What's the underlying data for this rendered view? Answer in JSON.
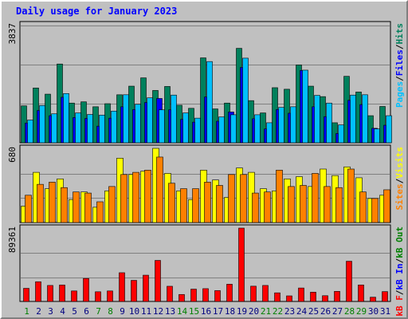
{
  "chart_data": {
    "type": "bar",
    "title": "Daily usage for January 2023",
    "x": [
      "1",
      "2",
      "3",
      "4",
      "5",
      "6",
      "7",
      "8",
      "9",
      "10",
      "11",
      "12",
      "13",
      "14",
      "15",
      "16",
      "17",
      "18",
      "19",
      "20",
      "21",
      "22",
      "23",
      "24",
      "25",
      "26",
      "27",
      "28",
      "29",
      "30",
      "31"
    ],
    "weekend_days": [
      "1",
      "7",
      "8",
      "14",
      "15",
      "21",
      "22",
      "28",
      "29"
    ],
    "colors": {
      "hits": "#00805c",
      "files": "#0000ff",
      "pages": "#00c0ff",
      "visits": "#ffff00",
      "sites": "#ff8000",
      "kb": "#ff0000",
      "weekday_label": "#000080",
      "weekend_label": "#008000"
    },
    "panels": {
      "top": {
        "ytick": "3837",
        "ymax": 3837,
        "legend": [
          {
            "text": "Pages",
            "color": "#00c0ff"
          },
          {
            "text": "/",
            "color": "#000000"
          },
          {
            "text": "Files",
            "color": "#0000ff"
          },
          {
            "text": "/",
            "color": "#000000"
          },
          {
            "text": "Hits",
            "color": "#00805c"
          }
        ],
        "series": [
          {
            "name": "Hits",
            "color": "#00805c",
            "values": [
              1200,
              1780,
              1580,
              2560,
              1290,
              1330,
              1170,
              1270,
              1560,
              1840,
              2110,
              1700,
              1830,
              1220,
              1120,
              2760,
              1100,
              1290,
              3070,
              1370,
              970,
              1790,
              1740,
              2530,
              1840,
              1500,
              650,
              2160,
              1650,
              880,
              1180
            ]
          },
          {
            "name": "Files",
            "color": "#0000ff",
            "values": [
              640,
              1050,
              880,
              1480,
              820,
              790,
              540,
              800,
              1170,
              1080,
              1310,
              1440,
              1070,
              760,
              670,
              1490,
              700,
              1000,
              2450,
              780,
              450,
              1080,
              960,
              2350,
              1170,
              850,
              300,
              1380,
              1240,
              470,
              570
            ]
          },
          {
            "name": "Pages",
            "color": "#00c0ff",
            "values": [
              740,
              1210,
              940,
              1600,
              970,
              920,
              900,
              1030,
              1560,
              1250,
              1460,
              1070,
              1550,
              970,
              800,
              2640,
              840,
              910,
              2750,
              910,
              650,
              1150,
              1170,
              2360,
              1540,
              1290,
              580,
              1550,
              1560,
              450,
              880
            ]
          }
        ]
      },
      "mid": {
        "ytick": "680",
        "ymax": 680,
        "legend": [
          {
            "text": "Sites",
            "color": "#ff8000"
          },
          {
            "text": "/",
            "color": "#000000"
          },
          {
            "text": "Visits",
            "color": "#ffff00"
          }
        ],
        "series": [
          {
            "name": "Visits",
            "color": "#ffff00",
            "values": [
              150,
              460,
              310,
              400,
              210,
              280,
              140,
              290,
              590,
              440,
              470,
              680,
              450,
              290,
              210,
              480,
              390,
              230,
              500,
              460,
              310,
              290,
              400,
              420,
              330,
              490,
              430,
              510,
              410,
              220,
              250
            ]
          },
          {
            "name": "Sites",
            "color": "#ff8000",
            "values": [
              250,
              350,
              370,
              320,
              280,
              270,
              190,
              330,
              440,
              460,
              480,
              600,
              360,
              310,
              310,
              370,
              340,
              440,
              440,
              270,
              280,
              480,
              330,
              340,
              450,
              330,
              320,
              490,
              280,
              220,
              300
            ]
          }
        ]
      },
      "bottom": {
        "ytick": "89361",
        "ymax": 89361,
        "legend": [
          {
            "text": "kB F",
            "color": "#ff0000"
          },
          {
            "text": "/",
            "color": "#000000"
          },
          {
            "text": "kB In",
            "color": "#0000ff"
          },
          {
            "text": "/",
            "color": "#000000"
          },
          {
            "text": "kB Out",
            "color": "#008000"
          }
        ],
        "series": [
          {
            "name": "kB F",
            "color": "#ff0000",
            "values": [
              16000,
              24000,
              19500,
              20000,
              12800,
              28000,
              11800,
              12800,
              35000,
              25700,
              32000,
              50000,
              18500,
              8500,
              15000,
              15600,
              13200,
              21000,
              89361,
              18600,
              19500,
              10500,
              6800,
              16400,
              11300,
              7000,
              12300,
              49000,
              20100,
              5200,
              12000
            ]
          }
        ]
      }
    }
  }
}
